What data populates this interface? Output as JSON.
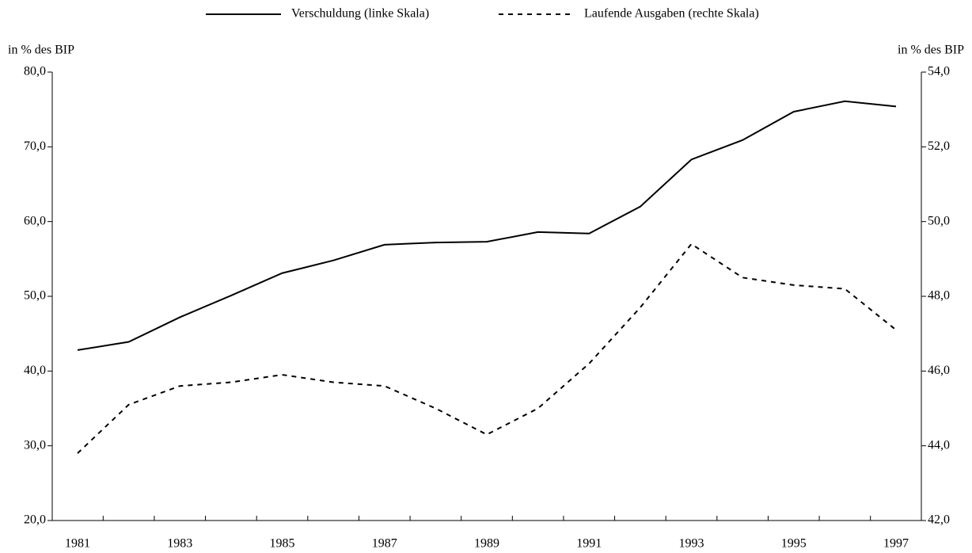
{
  "chart_data": {
    "type": "line",
    "legend": "top",
    "y_label": "in % des BIP",
    "y2_label": "in % des BIP",
    "categories": [
      "1981",
      null,
      "1983",
      null,
      "1985",
      null,
      "1987",
      null,
      "1989",
      null,
      "1991",
      null,
      "1993",
      null,
      "1995",
      null,
      "1997"
    ],
    "series": [
      {
        "name": "Verschuldung (linke Skala)",
        "color": "#000000",
        "dash": "solid",
        "values": [
          42.8,
          43.9,
          47.2,
          50.1,
          53.1,
          54.8,
          56.9,
          57.2,
          57.3,
          58.6,
          58.4,
          62.0,
          68.3,
          70.9,
          74.7,
          76.1,
          75.4
        ]
      },
      {
        "name": "Laufende Ausgaben (rechte Skala)",
        "color": "#000000",
        "dash": "dashed",
        "axis": "y2",
        "values": [
          43.8,
          45.1,
          45.6,
          45.7,
          45.9,
          45.7,
          45.6,
          45.0,
          44.3,
          45.0,
          46.2,
          47.7,
          49.4,
          48.5,
          48.3,
          48.2,
          47.1
        ]
      }
    ],
    "ylim": [
      20,
      80
    ],
    "yticks": [
      {
        "value": 20,
        "label": "20,0"
      },
      {
        "value": 30,
        "label": "30,0"
      },
      {
        "value": 40,
        "label": "40,0"
      },
      {
        "value": 50,
        "label": "50,0"
      },
      {
        "value": 60,
        "label": "60,0"
      },
      {
        "value": 70,
        "label": "70,0"
      },
      {
        "value": 80,
        "label": "80,0"
      }
    ],
    "y2lim": [
      42,
      54
    ],
    "y2ticks": [
      {
        "value": 42,
        "label": "42,0"
      },
      {
        "value": 44,
        "label": "44,0"
      },
      {
        "value": 46,
        "label": "46,0"
      },
      {
        "value": 48,
        "label": "48,0"
      },
      {
        "value": 50,
        "label": "50,0"
      },
      {
        "value": 52,
        "label": "52,0"
      },
      {
        "value": 54,
        "label": "54,0"
      }
    ],
    "grid": false
  }
}
